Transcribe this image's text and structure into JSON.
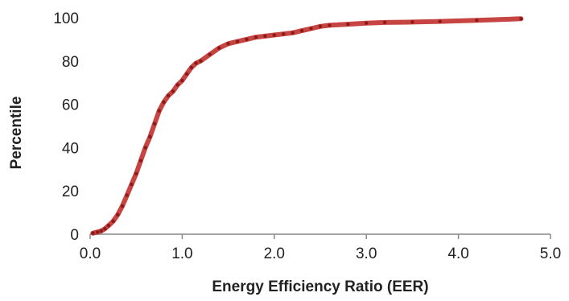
{
  "chart_data": {
    "type": "scatter",
    "title": "",
    "xlabel": "Energy Efficiency Ratio (EER)",
    "ylabel": "Percentile",
    "xlim": [
      0,
      5
    ],
    "ylim": [
      0,
      100
    ],
    "x_ticks": [
      "0.0",
      "1.0",
      "2.0",
      "3.0",
      "4.0",
      "5.0"
    ],
    "y_ticks": [
      "0",
      "20",
      "40",
      "60",
      "80",
      "100"
    ],
    "grid": false,
    "legend": "none",
    "colors": {
      "line": "#c0302c",
      "points": "#8b1a1a",
      "axis": "#888888"
    },
    "series": [
      {
        "x": [
          0.03,
          0.08,
          0.12,
          0.16,
          0.2,
          0.25,
          0.3,
          0.35,
          0.4,
          0.45,
          0.5,
          0.55,
          0.6,
          0.65,
          0.7,
          0.75,
          0.8,
          0.85,
          0.9,
          0.95,
          1.0,
          1.05,
          1.1,
          1.15,
          1.2,
          1.3,
          1.4,
          1.5,
          1.6,
          1.7,
          1.8,
          1.9,
          2.0,
          2.1,
          2.2,
          2.3,
          2.4,
          2.5,
          2.6,
          2.8,
          3.0,
          3.2,
          3.5,
          3.8,
          4.2,
          4.68
        ],
        "y": [
          0.5,
          1,
          1.5,
          2.5,
          4,
          6,
          9,
          13,
          18,
          23,
          28,
          34,
          40,
          45,
          51,
          57,
          61,
          64,
          66,
          69,
          71,
          74,
          77,
          79,
          80,
          83,
          86,
          88,
          89,
          90,
          91,
          91.5,
          92,
          92.5,
          93,
          94,
          95,
          96,
          96.5,
          97,
          97.5,
          97.8,
          98,
          98.3,
          98.8,
          99.5
        ]
      }
    ]
  }
}
